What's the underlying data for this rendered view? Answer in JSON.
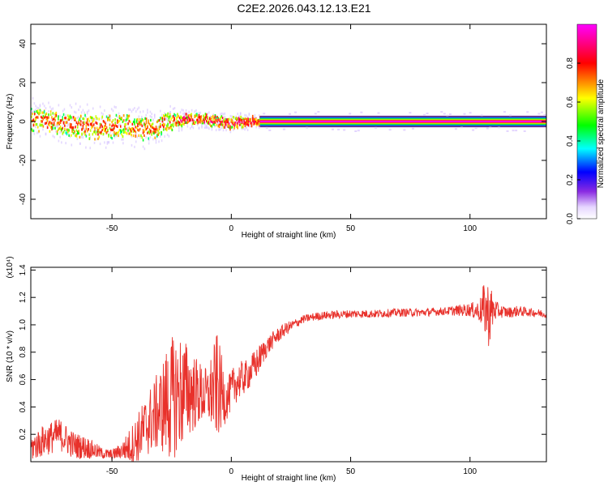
{
  "figure_title": "C2E2.2026.043.12.13.E21",
  "chart_data": [
    {
      "type": "heatmap",
      "title": "C2E2.2026.043.12.13.E21",
      "xlabel": "Height of straight line (km)",
      "ylabel": "Frequency (Hz)",
      "xlim": [
        -84,
        132
      ],
      "ylim": [
        -50,
        50
      ],
      "xticks": [
        -50,
        0,
        50,
        100
      ],
      "yticks": [
        -40,
        -20,
        0,
        20,
        40
      ],
      "colorbar": {
        "label": "Normalized spectral amplitude",
        "range": [
          0.0,
          1.0
        ],
        "ticks": [
          0.0,
          0.2,
          0.4,
          0.6,
          0.8
        ],
        "tick_labels": [
          "0.0",
          "0.2",
          "0.4",
          "0.6",
          "0.8"
        ],
        "colormap": [
          "#ffffff",
          "#8a2be2",
          "#0000ff",
          "#00ffff",
          "#00ff00",
          "#ffff00",
          "#ff0000",
          "#ff00ff"
        ]
      },
      "ridge": {
        "description": "spectral peak frequency vs height",
        "x": [
          -84,
          -75,
          -65,
          -55,
          -45,
          -38,
          -32,
          -26,
          -20,
          -12,
          -5,
          0,
          5,
          12,
          132
        ],
        "center_hz": [
          1,
          0,
          -2,
          -3,
          -2,
          -4,
          -3,
          0,
          1,
          1,
          0,
          -1,
          0,
          0,
          0
        ],
        "spread_hz": [
          7,
          6,
          7,
          7,
          6,
          7,
          6,
          5,
          3,
          3,
          3,
          3,
          3,
          2,
          2
        ]
      },
      "band": {
        "x_start": 12,
        "x_end": 132,
        "frequency_hz": 0,
        "max_amplitude": 1.0
      }
    },
    {
      "type": "line",
      "title": "",
      "xlabel": "Height of straight line (km)",
      "ylabel": "SNR (10 * v/v)",
      "scale_label": "(x10⁴)",
      "xlim": [
        -84,
        132
      ],
      "ylim": [
        0.0,
        1.42
      ],
      "xticks": [
        -50,
        0,
        50,
        100
      ],
      "yticks": [
        0.2,
        0.4,
        0.6,
        0.8,
        1.0,
        1.2,
        1.4
      ],
      "ytick_labels": [
        "0.2",
        "0.4",
        "0.6",
        "0.8",
        "1.0",
        "1.2",
        "1.4"
      ],
      "color": "#e8312b",
      "series": [
        {
          "name": "SNR",
          "x": [
            -84,
            -78,
            -72,
            -66,
            -60,
            -54,
            -50,
            -46,
            -42,
            -38,
            -34,
            -30,
            -26,
            -22,
            -18,
            -14,
            -10,
            -6,
            -2,
            2,
            6,
            10,
            14,
            18,
            22,
            26,
            30,
            35,
            40,
            50,
            60,
            70,
            80,
            90,
            100,
            104,
            106,
            108,
            110,
            112,
            116,
            120,
            126,
            132
          ],
          "y": [
            0.1,
            0.16,
            0.2,
            0.12,
            0.1,
            0.06,
            0.05,
            0.08,
            0.12,
            0.2,
            0.3,
            0.38,
            0.45,
            0.5,
            0.52,
            0.5,
            0.48,
            0.55,
            0.45,
            0.58,
            0.62,
            0.7,
            0.82,
            0.9,
            0.96,
            1.0,
            1.04,
            1.06,
            1.07,
            1.08,
            1.08,
            1.09,
            1.09,
            1.1,
            1.11,
            1.1,
            1.12,
            1.08,
            1.11,
            1.1,
            1.09,
            1.1,
            1.09,
            1.08
          ],
          "noise_amp": [
            0.1,
            0.12,
            0.12,
            0.1,
            0.08,
            0.04,
            0.04,
            0.06,
            0.14,
            0.2,
            0.25,
            0.3,
            0.45,
            0.45,
            0.35,
            0.25,
            0.2,
            0.4,
            0.15,
            0.15,
            0.12,
            0.12,
            0.08,
            0.06,
            0.05,
            0.04,
            0.03,
            0.03,
            0.03,
            0.03,
            0.03,
            0.03,
            0.03,
            0.03,
            0.05,
            0.08,
            0.2,
            0.25,
            0.1,
            0.05,
            0.04,
            0.04,
            0.03,
            0.03
          ]
        }
      ]
    }
  ]
}
